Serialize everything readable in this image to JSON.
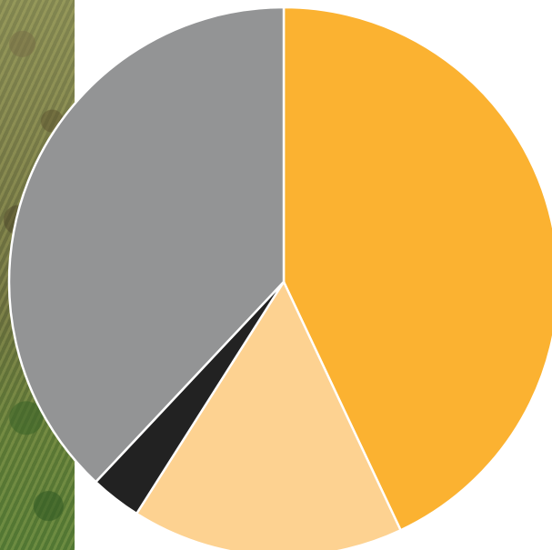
{
  "chart_data": {
    "type": "pie",
    "title": "",
    "start_angle_deg": 0,
    "direction": "clockwise",
    "slices": [
      {
        "value": 43.0,
        "color": "#FBB231"
      },
      {
        "value": 16.0,
        "color": "#FDD291"
      },
      {
        "value": 3.0,
        "color": "#222222"
      },
      {
        "value": 38.0,
        "color": "#939495"
      }
    ]
  },
  "background": {
    "photo_strip": "grass-photo"
  }
}
